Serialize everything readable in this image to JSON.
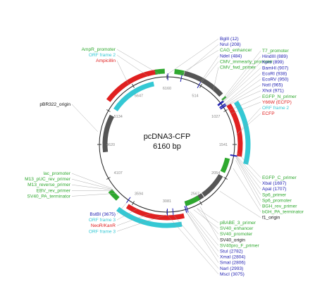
{
  "plasmid": {
    "name": "pcDNA3-CFP",
    "size_label": "6160 bp",
    "total_bp": 6160
  },
  "colors": {
    "feature_green": "#2ea82e",
    "enzyme_blue": "#1b1bb0",
    "orf_cyan": "#34c8d4",
    "red": "#e02020",
    "gray": "#555555",
    "tick_text": "#888888",
    "label_black": "#111111"
  },
  "tick_labels": [
    "6160",
    "514",
    "1027",
    "1541",
    "2054",
    "2567",
    "3081",
    "3594",
    "4107",
    "4620",
    "5134",
    "5647"
  ],
  "labels": {
    "top_left": [
      {
        "text": "AmpR_promoter",
        "color": "feature_green"
      },
      {
        "text": "ORF frame 2",
        "color": "orf_cyan"
      },
      {
        "text": "Ampicillin",
        "color": "red"
      }
    ],
    "left_origin": [
      {
        "text": "pBR322_origin",
        "color": "label_black"
      }
    ],
    "top_right_a": [
      {
        "text": "BglII (12)",
        "color": "enzyme_blue"
      },
      {
        "text": "NruI (208)",
        "color": "enzyme_blue"
      },
      {
        "text": "CAG_enhancer",
        "color": "feature_green"
      },
      {
        "text": "NdeI (484)",
        "color": "enzyme_blue"
      },
      {
        "text": "CMV_immearly_promoter",
        "color": "feature_green"
      },
      {
        "text": "CMV_fwd_primer",
        "color": "feature_green"
      }
    ],
    "top_right_b": [
      {
        "text": "T7_promoter",
        "color": "feature_green"
      },
      {
        "text": "HindIII (889)",
        "color": "enzyme_blue"
      },
      {
        "text": "KpnI (899)",
        "color": "enzyme_blue"
      },
      {
        "text": "BamHI (907)",
        "color": "enzyme_blue"
      },
      {
        "text": "EcoRI (938)",
        "color": "enzyme_blue"
      },
      {
        "text": "EcoRV (950)",
        "color": "enzyme_blue"
      },
      {
        "text": "NotI (965)",
        "color": "enzyme_blue"
      },
      {
        "text": "XhoI (971)",
        "color": "enzyme_blue"
      },
      {
        "text": "EGFP_N_primer",
        "color": "feature_green"
      },
      {
        "text": "Y66W (ECFP)",
        "color": "red"
      },
      {
        "text": "ORF frame 2",
        "color": "orf_cyan"
      },
      {
        "text": "ECFP",
        "color": "red"
      }
    ],
    "right_mid": [
      {
        "text": "EGFP_C_primer",
        "color": "feature_green"
      },
      {
        "text": "XbaI (1697)",
        "color": "enzyme_blue"
      },
      {
        "text": "ApaI (1707)",
        "color": "enzyme_blue"
      },
      {
        "text": "Sp6_primer",
        "color": "feature_green"
      },
      {
        "text": "Sp6_promoter",
        "color": "feature_green"
      },
      {
        "text": "BGH_rev_primer",
        "color": "feature_green"
      },
      {
        "text": "bGH_PA_terminator",
        "color": "feature_green"
      },
      {
        "text": "f1_origin",
        "color": "label_black"
      }
    ],
    "left_mid": [
      {
        "text": "lac_promoter",
        "color": "feature_green"
      },
      {
        "text": "M13_pUC_rev_primer",
        "color": "feature_green"
      },
      {
        "text": "M13_reverse_primer",
        "color": "feature_green"
      },
      {
        "text": "EBV_rev_primer",
        "color": "feature_green"
      },
      {
        "text": "SV40_PA_terminator",
        "color": "feature_green"
      }
    ],
    "bottom_left": [
      {
        "text": "BstBI (3675)",
        "color": "enzyme_blue"
      },
      {
        "text": "ORF frame 3",
        "color": "orf_cyan"
      },
      {
        "text": "NeoR/KanR",
        "color": "red"
      },
      {
        "text": "ORF frame 3",
        "color": "orf_cyan"
      }
    ],
    "bottom_right": [
      {
        "text": "pBABE_3_primer",
        "color": "feature_green"
      },
      {
        "text": "SV40_enhancer",
        "color": "feature_green"
      },
      {
        "text": "SV40_promoter",
        "color": "feature_green"
      },
      {
        "text": "SV40_origin",
        "color": "label_black"
      },
      {
        "text": "SV40pro_F_primer",
        "color": "feature_green"
      },
      {
        "text": "StuI (2782)",
        "color": "enzyme_blue"
      },
      {
        "text": "XmaI (2804)",
        "color": "enzyme_blue"
      },
      {
        "text": "SmaI (2806)",
        "color": "enzyme_blue"
      },
      {
        "text": "NarI (2993)",
        "color": "enzyme_blue"
      },
      {
        "text": "MscI (3075)",
        "color": "enzyme_blue"
      }
    ]
  },
  "features": [
    {
      "name": "CMV_immearly_promoter",
      "start": 235,
      "end": 815,
      "color": "gray",
      "track": "outer"
    },
    {
      "name": "ECFP",
      "start": 980,
      "end": 1700,
      "color": "red",
      "track": "outer"
    },
    {
      "name": "ORF frame 2",
      "start": 1000,
      "end": 1780,
      "color": "orf_cyan",
      "track": "outer2"
    },
    {
      "name": "bGH_PA_terminator",
      "start": 1760,
      "end": 1990,
      "color": "feature_green",
      "track": "inner"
    },
    {
      "name": "f1_origin",
      "start": 2050,
      "end": 2470,
      "color": "gray",
      "track": "inner"
    },
    {
      "name": "SV40_origin",
      "start": 2480,
      "end": 2780,
      "color": "gray",
      "track": "inner"
    },
    {
      "name": "SV40_promoter",
      "start": 2550,
      "end": 2790,
      "color": "feature_green",
      "track": "inner"
    },
    {
      "name": "NeoR/KanR",
      "start": 2850,
      "end": 3640,
      "color": "red",
      "track": "outer"
    },
    {
      "name": "ORF frame 3",
      "start": 2900,
      "end": 3720,
      "color": "orf_cyan",
      "track": "outer2"
    },
    {
      "name": "SV40_PA_terminator",
      "start": 3800,
      "end": 3950,
      "color": "feature_green",
      "track": "outer"
    },
    {
      "name": "pBR322_origin",
      "start": 4500,
      "end": 5090,
      "color": "gray",
      "track": "inner"
    },
    {
      "name": "Ampicillin",
      "start": 5250,
      "end": 6030,
      "color": "red",
      "track": "outer"
    },
    {
      "name": "ORF frame 2",
      "start": 5200,
      "end": 5950,
      "color": "orf_cyan",
      "track": "inner"
    },
    {
      "name": "AmpR_promoter",
      "start": 6000,
      "end": 6130,
      "color": "feature_green",
      "track": "outer"
    },
    {
      "name": "CAG_enhancer",
      "start": 100,
      "end": 230,
      "color": "feature_green",
      "track": "outer"
    },
    {
      "name": "T7_promoter",
      "start": 860,
      "end": 885,
      "color": "feature_green",
      "track": "outer"
    }
  ],
  "sites": [
    12,
    208,
    484,
    889,
    899,
    907,
    938,
    950,
    965,
    971,
    1697,
    1707,
    2782,
    2804,
    2806,
    2993,
    3075,
    3675
  ]
}
